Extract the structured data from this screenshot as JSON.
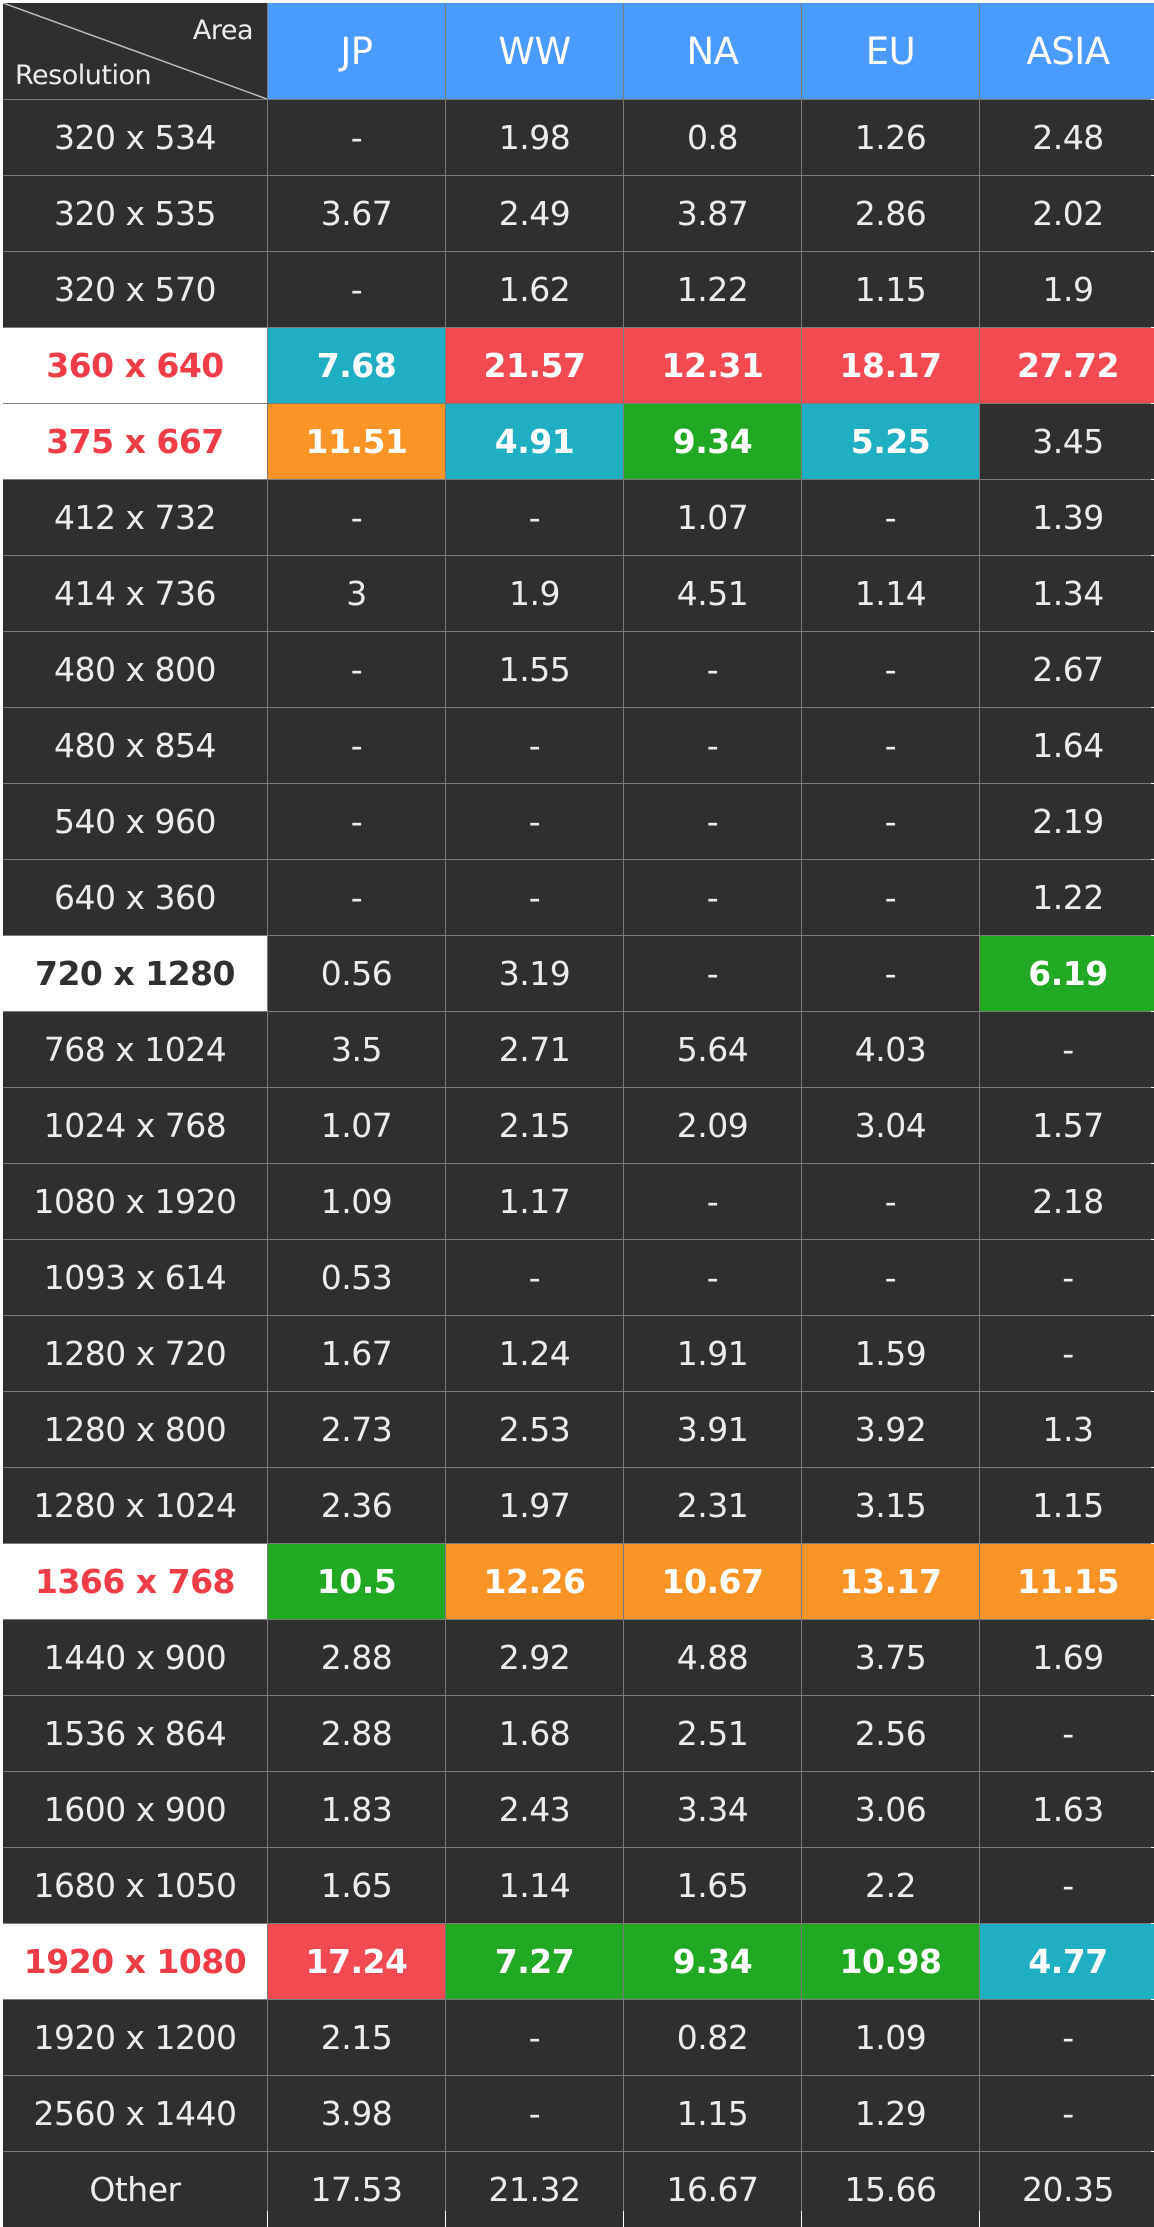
{
  "chart_data": {
    "type": "table",
    "corner": {
      "top_label": "Area",
      "bottom_label": "Resolution"
    },
    "columns": [
      "JP",
      "WW",
      "NA",
      "EU",
      "ASIA"
    ],
    "colors": {
      "header": "#4a9bff",
      "cyan": "#1faec3",
      "red": "#f24a50",
      "orange": "#fb9427",
      "green": "#21a924",
      "dark": "#2f2f2f"
    },
    "rows": [
      {
        "label": "320 x 534",
        "values": [
          "-",
          "1.98",
          "0.8",
          "1.26",
          "2.48"
        ]
      },
      {
        "label": "320 x 535",
        "values": [
          "3.67",
          "2.49",
          "3.87",
          "2.86",
          "2.02"
        ]
      },
      {
        "label": "320 x 570",
        "values": [
          "-",
          "1.62",
          "1.22",
          "1.15",
          "1.9"
        ]
      },
      {
        "label": "360 x 640",
        "highlight": "red",
        "values": [
          "7.68",
          "21.57",
          "12.31",
          "18.17",
          "27.72"
        ],
        "cell_colors": [
          "cyan",
          "red",
          "red",
          "red",
          "red"
        ]
      },
      {
        "label": "375 x 667",
        "highlight": "red",
        "values": [
          "11.51",
          "4.91",
          "9.34",
          "5.25",
          "3.45"
        ],
        "cell_colors": [
          "orange",
          "cyan",
          "green",
          "cyan",
          ""
        ]
      },
      {
        "label": "412 x 732",
        "values": [
          "-",
          "-",
          "1.07",
          "-",
          "1.39"
        ]
      },
      {
        "label": "414 x 736",
        "values": [
          "3",
          "1.9",
          "4.51",
          "1.14",
          "1.34"
        ]
      },
      {
        "label": "480 x 800",
        "values": [
          "-",
          "1.55",
          "-",
          "-",
          "2.67"
        ]
      },
      {
        "label": "480 x 854",
        "values": [
          "-",
          "-",
          "-",
          "-",
          "1.64"
        ]
      },
      {
        "label": "540 x 960",
        "values": [
          "-",
          "-",
          "-",
          "-",
          "2.19"
        ]
      },
      {
        "label": "640 x 360",
        "values": [
          "-",
          "-",
          "-",
          "-",
          "1.22"
        ]
      },
      {
        "label": "720 x 1280",
        "highlight": "dark",
        "values": [
          "0.56",
          "3.19",
          "-",
          "-",
          "6.19"
        ],
        "cell_colors": [
          "",
          "",
          "",
          "",
          "green"
        ]
      },
      {
        "label": "768 x 1024",
        "values": [
          "3.5",
          "2.71",
          "5.64",
          "4.03",
          "-"
        ]
      },
      {
        "label": "1024 x 768",
        "values": [
          "1.07",
          "2.15",
          "2.09",
          "3.04",
          "1.57"
        ]
      },
      {
        "label": "1080 x 1920",
        "values": [
          "1.09",
          "1.17",
          "-",
          "-",
          "2.18"
        ]
      },
      {
        "label": "1093 x 614",
        "values": [
          "0.53",
          "-",
          "-",
          "-",
          "-"
        ]
      },
      {
        "label": "1280 x 720",
        "values": [
          "1.67",
          "1.24",
          "1.91",
          "1.59",
          "-"
        ]
      },
      {
        "label": "1280 x 800",
        "values": [
          "2.73",
          "2.53",
          "3.91",
          "3.92",
          "1.3"
        ]
      },
      {
        "label": "1280 x 1024",
        "values": [
          "2.36",
          "1.97",
          "2.31",
          "3.15",
          "1.15"
        ]
      },
      {
        "label": "1366 x 768",
        "highlight": "red",
        "values": [
          "10.5",
          "12.26",
          "10.67",
          "13.17",
          "11.15"
        ],
        "cell_colors": [
          "green",
          "orange",
          "orange",
          "orange",
          "orange"
        ]
      },
      {
        "label": "1440 x 900",
        "values": [
          "2.88",
          "2.92",
          "4.88",
          "3.75",
          "1.69"
        ]
      },
      {
        "label": "1536 x 864",
        "values": [
          "2.88",
          "1.68",
          "2.51",
          "2.56",
          "-"
        ]
      },
      {
        "label": "1600 x 900",
        "values": [
          "1.83",
          "2.43",
          "3.34",
          "3.06",
          "1.63"
        ]
      },
      {
        "label": "1680 x 1050",
        "values": [
          "1.65",
          "1.14",
          "1.65",
          "2.2",
          "-"
        ]
      },
      {
        "label": "1920 x 1080",
        "highlight": "red",
        "values": [
          "17.24",
          "7.27",
          "9.34",
          "10.98",
          "4.77"
        ],
        "cell_colors": [
          "red",
          "green",
          "green",
          "green",
          "cyan"
        ]
      },
      {
        "label": "1920 x 1200",
        "values": [
          "2.15",
          "-",
          "0.82",
          "1.09",
          "-"
        ]
      },
      {
        "label": "2560 x 1440",
        "values": [
          "3.98",
          "-",
          "1.15",
          "1.29",
          "-"
        ]
      },
      {
        "label": "Other",
        "values": [
          "17.53",
          "21.32",
          "16.67",
          "15.66",
          "20.35"
        ]
      }
    ]
  }
}
